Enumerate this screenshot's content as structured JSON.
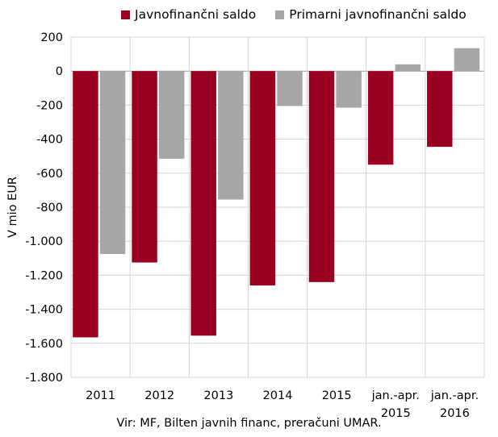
{
  "chart_data": {
    "type": "bar",
    "categories": [
      [
        "2011"
      ],
      [
        "2012"
      ],
      [
        "2013"
      ],
      [
        "2014"
      ],
      [
        "2015"
      ],
      [
        "jan.-apr.",
        "2015"
      ],
      [
        "jan.-apr.",
        "2016"
      ]
    ],
    "series": [
      {
        "name": "Javnofinančni saldo",
        "color": "#9b0020",
        "values": [
          -1565,
          -1125,
          -1555,
          -1260,
          -1240,
          -550,
          -445
        ]
      },
      {
        "name": "Primarni javnofinančni saldo",
        "color": "#a6a6a6",
        "values": [
          -1075,
          -515,
          -755,
          -205,
          -215,
          40,
          135
        ]
      }
    ],
    "ylabel": "V mio EUR",
    "ylim": [
      -1800,
      200
    ],
    "yticks": [
      200,
      0,
      -200,
      -400,
      -600,
      -800,
      -1000,
      -1200,
      -1400,
      -1600,
      -1800
    ],
    "ytick_labels": [
      "200",
      "0",
      "-200",
      "-400",
      "-600",
      "-800",
      "-1.000",
      "-1.200",
      "-1.400",
      "-1.600",
      "-1.800"
    ],
    "grid": true,
    "legend_position": "top",
    "source": "Vir: MF, Bilten javnih financ, preračuni UMAR."
  }
}
